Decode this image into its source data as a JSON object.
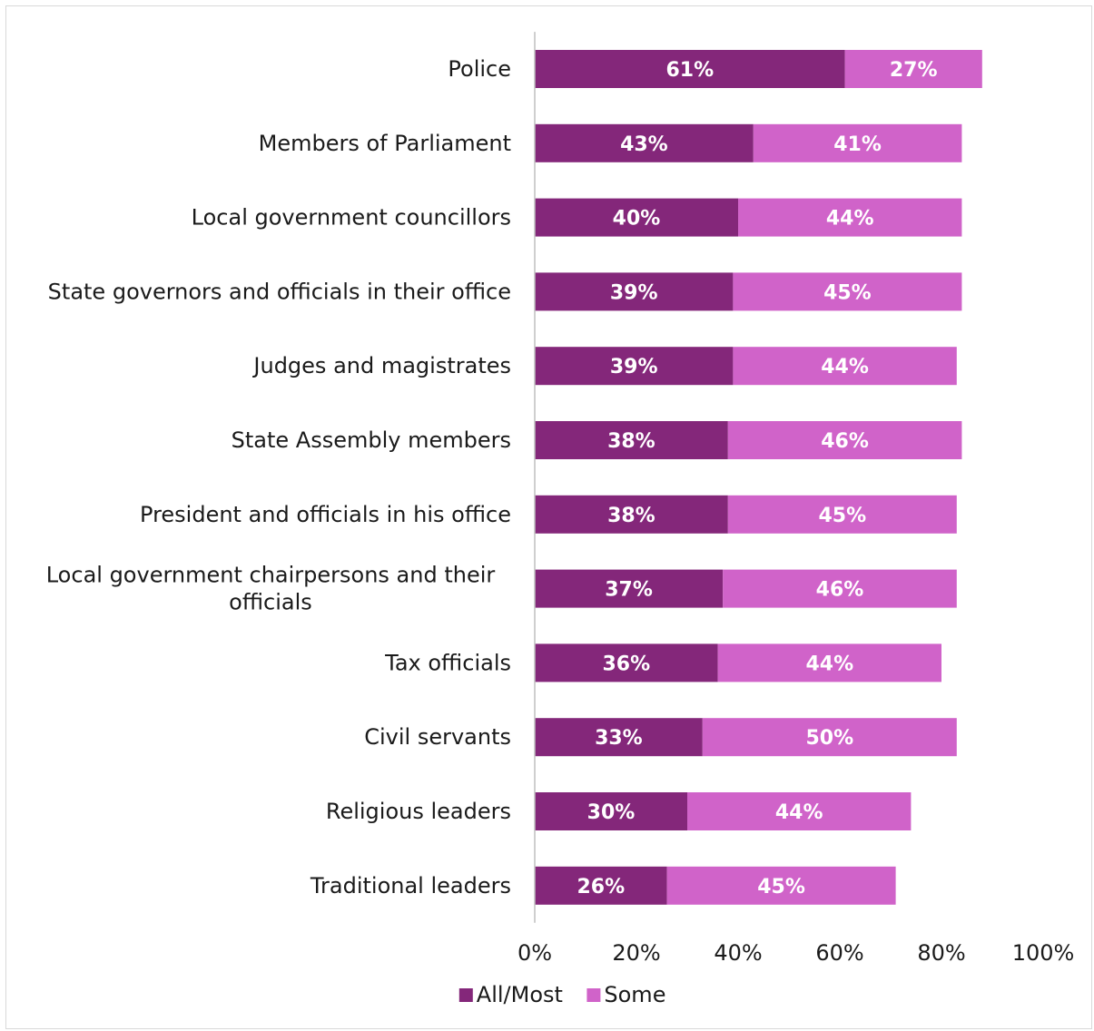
{
  "chart_data": {
    "type": "bar",
    "orientation": "horizontal",
    "stacked": true,
    "title": "",
    "xlabel": "",
    "ylabel": "",
    "xlim": [
      0,
      100
    ],
    "x_ticks": [
      "0%",
      "20%",
      "40%",
      "60%",
      "80%",
      "100%"
    ],
    "categories": [
      "Police",
      "Members of Parliament",
      "Local government councillors",
      "State governors and officials in their office",
      "Judges and magistrates",
      "State Assembly members",
      "President and officials in his office",
      "Local government chairpersons and their officials",
      "Tax officials",
      "Civil servants",
      "Religious leaders",
      "Traditional leaders"
    ],
    "series": [
      {
        "name": "All/Most",
        "color": "#84277a",
        "values": [
          61,
          43,
          40,
          39,
          39,
          38,
          38,
          37,
          36,
          33,
          30,
          26
        ]
      },
      {
        "name": "Some",
        "color": "#d063c9",
        "values": [
          27,
          41,
          44,
          45,
          44,
          46,
          45,
          46,
          44,
          50,
          44,
          45
        ]
      }
    ],
    "grid": false,
    "legend_position": "bottom"
  }
}
